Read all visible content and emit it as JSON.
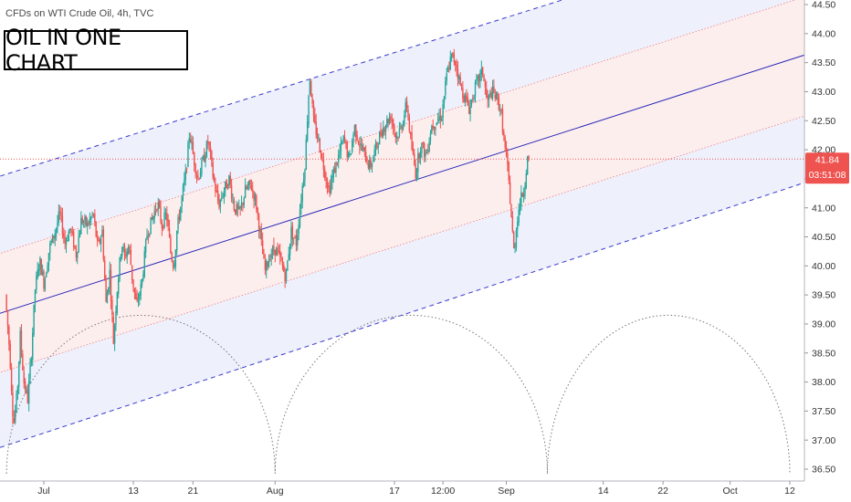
{
  "header": {
    "symbol_line": "CFDs on WTI Crude Oil, 4h, TVC"
  },
  "title_box": {
    "text": "OIL IN ONE CHART"
  },
  "colors": {
    "up": "#26a69a",
    "down": "#ef5350",
    "regression": "#2a2ab8",
    "channel_outer": "#3a3ad0",
    "inner_line": "#f08080",
    "outer_fill": "#eef0fb",
    "inner_fill": "#fdeeee",
    "cycles": "#777777",
    "price_badge": "#ef5350"
  },
  "chart_data": {
    "type": "candlestick",
    "title": "",
    "ylim": [
      36.42,
      44.55
    ],
    "y_ticks": [
      "44.50",
      "44.00",
      "43.50",
      "43.00",
      "42.50",
      "42.00",
      "41.50",
      "41.00",
      "40.50",
      "40.00",
      "39.50",
      "39.00",
      "38.50",
      "38.00",
      "37.50",
      "37.00",
      "36.50"
    ],
    "x_ticks": [
      {
        "label": "Jul",
        "day": 1
      },
      {
        "label": "13",
        "day": 13
      },
      {
        "label": "21",
        "day": 21
      },
      {
        "label": "Aug",
        "day": 32
      },
      {
        "label": "17",
        "day": 48
      },
      {
        "label": "12:00",
        "day": 54.5
      },
      {
        "label": "Sep",
        "day": 63
      },
      {
        "label": "14",
        "day": 76
      },
      {
        "label": "22",
        "day": 84
      },
      {
        "label": "Oct",
        "day": 93
      },
      {
        "label": "12",
        "day": 101
      }
    ],
    "last_price": "41.84",
    "countdown": "03:51:08",
    "regression_channel": {
      "center": [
        [
          -4,
          39.22
        ],
        [
          101,
          43.55
        ]
      ],
      "upper": [
        [
          -4,
          41.58
        ],
        [
          74,
          44.72
        ]
      ],
      "lower": [
        [
          0.5,
          37.1
        ],
        [
          101,
          41.35
        ]
      ],
      "inner_upper": [
        [
          -4,
          40.25
        ],
        [
          101,
          44.55
        ]
      ],
      "inner_lower": [
        [
          -4,
          38.2
        ],
        [
          101,
          42.5
        ]
      ]
    },
    "cycles": [
      [
        -4,
        32
      ],
      [
        32,
        68.5
      ],
      [
        68.5,
        101
      ]
    ],
    "cycle_peak_price": 39.15,
    "path_points": [
      [
        -4,
        39.5
      ],
      [
        -3.4,
        38.5
      ],
      [
        -2.9,
        37.25
      ],
      [
        -2.4,
        37.8
      ],
      [
        -2,
        38.8
      ],
      [
        -1.5,
        38.0
      ],
      [
        -1,
        37.7
      ],
      [
        -0.5,
        38.5
      ],
      [
        0,
        39.6
      ],
      [
        0.6,
        40.1
      ],
      [
        1.2,
        39.7
      ],
      [
        1.9,
        40.3
      ],
      [
        2.6,
        40.55
      ],
      [
        3.3,
        40.9
      ],
      [
        4,
        40.4
      ],
      [
        4.7,
        40.65
      ],
      [
        5.5,
        40.2
      ],
      [
        6.2,
        40.8
      ],
      [
        7,
        40.7
      ],
      [
        7.8,
        40.9
      ],
      [
        8.4,
        40.3
      ],
      [
        9,
        40.6
      ],
      [
        9.5,
        39.35
      ],
      [
        10,
        39.9
      ],
      [
        10.5,
        38.7
      ],
      [
        11,
        39.6
      ],
      [
        11.6,
        40.4
      ],
      [
        12,
        40.15
      ],
      [
        12.6,
        40.35
      ],
      [
        13,
        39.8
      ],
      [
        13.6,
        39.3
      ],
      [
        14.3,
        39.7
      ],
      [
        15,
        40.55
      ],
      [
        15.7,
        40.8
      ],
      [
        16.4,
        41.1
      ],
      [
        17,
        40.7
      ],
      [
        17.6,
        40.9
      ],
      [
        18.2,
        40.2
      ],
      [
        18.6,
        40.0
      ],
      [
        19,
        40.6
      ],
      [
        19.6,
        41.1
      ],
      [
        20.2,
        41.6
      ],
      [
        20.7,
        42.3
      ],
      [
        21.2,
        41.9
      ],
      [
        21.8,
        41.5
      ],
      [
        22.5,
        41.8
      ],
      [
        23.2,
        42.15
      ],
      [
        23.9,
        41.5
      ],
      [
        24.6,
        41.05
      ],
      [
        25.3,
        41.3
      ],
      [
        26,
        41.5
      ],
      [
        26.7,
        41.0
      ],
      [
        27.4,
        40.9
      ],
      [
        28.2,
        41.3
      ],
      [
        28.9,
        41.4
      ],
      [
        29.6,
        41.1
      ],
      [
        30.2,
        40.5
      ],
      [
        30.8,
        39.9
      ],
      [
        31.5,
        40.2
      ],
      [
        32.2,
        40.3
      ],
      [
        33,
        40.05
      ],
      [
        33.6,
        39.8
      ],
      [
        34.3,
        40.6
      ],
      [
        35,
        40.4
      ],
      [
        35.6,
        41.1
      ],
      [
        36.2,
        41.8
      ],
      [
        36.8,
        43.3
      ],
      [
        37.3,
        42.5
      ],
      [
        38,
        42.15
      ],
      [
        38.7,
        41.7
      ],
      [
        39.4,
        41.3
      ],
      [
        40,
        41.6
      ],
      [
        40.7,
        41.9
      ],
      [
        41.4,
        42.2
      ],
      [
        42.1,
        41.8
      ],
      [
        42.8,
        42.4
      ],
      [
        43.5,
        42.1
      ],
      [
        44.2,
        41.9
      ],
      [
        44.9,
        41.7
      ],
      [
        45.6,
        42.0
      ],
      [
        46.3,
        42.3
      ],
      [
        47,
        42.45
      ],
      [
        47.7,
        42.6
      ],
      [
        48.4,
        42.2
      ],
      [
        49.1,
        42.4
      ],
      [
        49.8,
        42.8
      ],
      [
        50.4,
        42.1
      ],
      [
        51,
        41.6
      ],
      [
        51.7,
        42.1
      ],
      [
        52.4,
        41.9
      ],
      [
        53.1,
        42.4
      ],
      [
        53.8,
        42.5
      ],
      [
        54.5,
        42.6
      ],
      [
        55.2,
        43.3
      ],
      [
        55.8,
        43.6
      ],
      [
        56.4,
        43.5
      ],
      [
        57,
        43.1
      ],
      [
        57.6,
        42.9
      ],
      [
        58.2,
        42.7
      ],
      [
        58.8,
        43.0
      ],
      [
        59.4,
        43.2
      ],
      [
        60,
        43.35
      ],
      [
        60.6,
        42.8
      ],
      [
        61.2,
        43.0
      ],
      [
        61.8,
        42.9
      ],
      [
        62.4,
        42.7
      ],
      [
        63,
        42.0
      ],
      [
        63.4,
        41.6
      ],
      [
        63.8,
        40.9
      ],
      [
        64.2,
        40.2
      ],
      [
        64.6,
        40.8
      ],
      [
        65,
        41.1
      ],
      [
        65.5,
        41.3
      ],
      [
        66,
        41.84
      ]
    ]
  }
}
